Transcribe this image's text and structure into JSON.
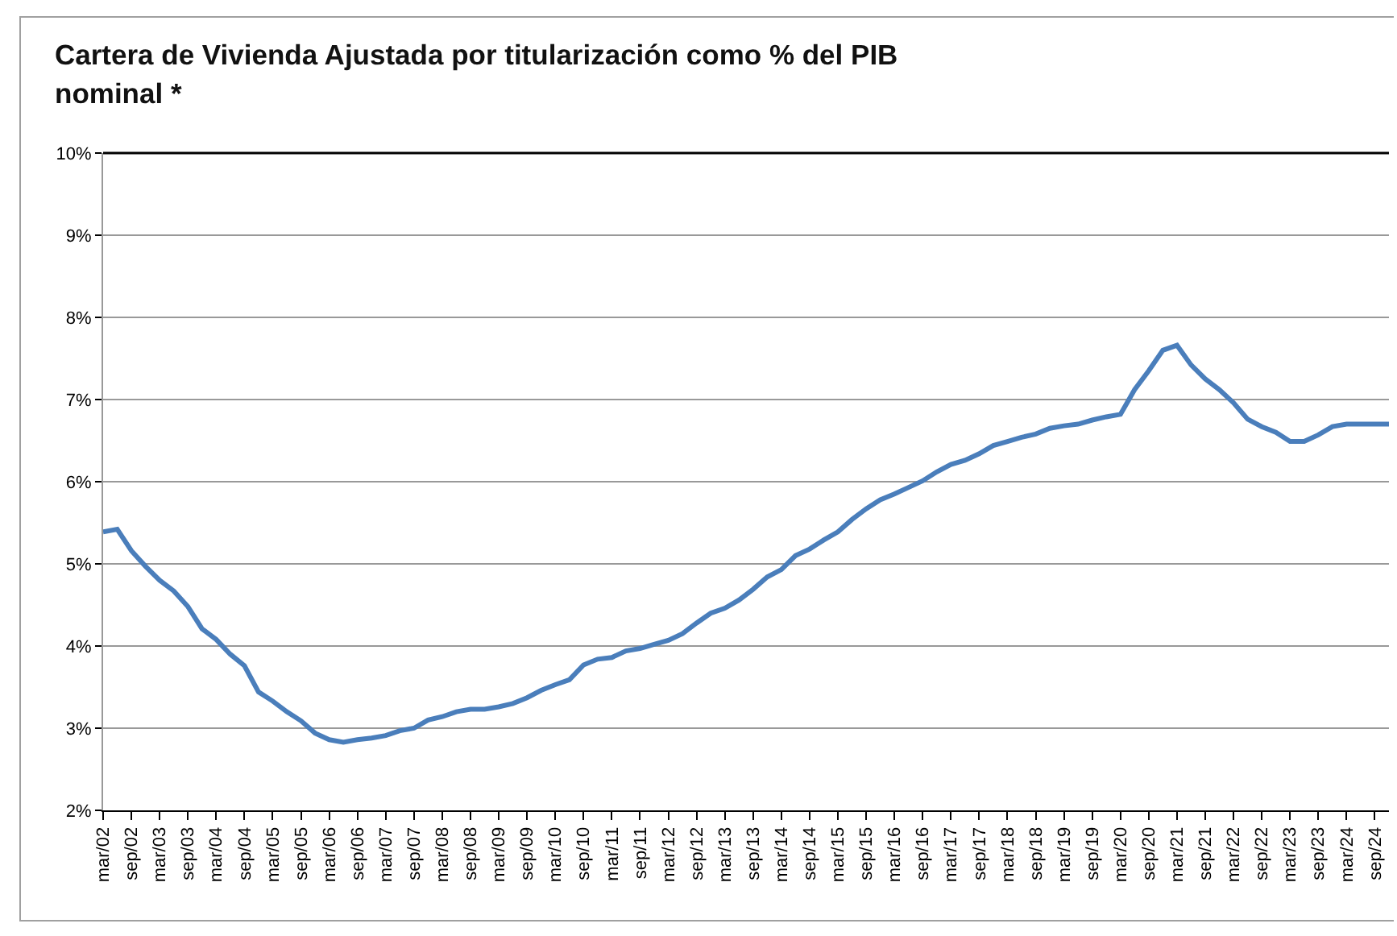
{
  "chart_data": {
    "type": "line",
    "title": "Cartera de Vivienda Ajustada por titularización como % del PIB nominal *",
    "categories": [
      "mar/02",
      null,
      "sep/02",
      null,
      "mar/03",
      null,
      "sep/03",
      null,
      "mar/04",
      null,
      "sep/04",
      null,
      "mar/05",
      null,
      "sep/05",
      null,
      "mar/06",
      null,
      "sep/06",
      null,
      "mar/07",
      null,
      "sep/07",
      null,
      "mar/08",
      null,
      "sep/08",
      null,
      "mar/09",
      null,
      "sep/09",
      null,
      "mar/10",
      null,
      "sep/10",
      null,
      "mar/11",
      null,
      "sep/11",
      null,
      "mar/12",
      null,
      "sep/12",
      null,
      "mar/13",
      null,
      "sep/13",
      null,
      "mar/14",
      null,
      "sep/14",
      null,
      "mar/15",
      null,
      "sep/15",
      null,
      "mar/16",
      null,
      "sep/16",
      null,
      "mar/17",
      null,
      "sep/17",
      null,
      "mar/18",
      null,
      "sep/18",
      null,
      "mar/19",
      null,
      "sep/19",
      null,
      "mar/20",
      null,
      "sep/20",
      null,
      "mar/21",
      null,
      "sep/21",
      null,
      "mar/22",
      null,
      "sep/22",
      null,
      "mar/23",
      null,
      "sep/23",
      null,
      "mar/24",
      null,
      "sep/24",
      null
    ],
    "series": [
      {
        "color": "#4a7ebb",
        "values": [
          5.39,
          5.42,
          5.16,
          4.97,
          4.8,
          4.67,
          4.48,
          4.21,
          4.08,
          3.9,
          3.76,
          3.44,
          3.33,
          3.2,
          3.09,
          2.94,
          2.86,
          2.83,
          2.86,
          2.88,
          2.91,
          2.97,
          3.0,
          3.1,
          3.14,
          3.2,
          3.23,
          3.23,
          3.26,
          3.3,
          3.37,
          3.46,
          3.53,
          3.59,
          3.77,
          3.84,
          3.86,
          3.94,
          3.97,
          4.02,
          4.07,
          4.15,
          4.28,
          4.4,
          4.46,
          4.56,
          4.69,
          4.84,
          4.93,
          5.1,
          5.18,
          5.29,
          5.39,
          5.54,
          5.67,
          5.78,
          5.85,
          5.93,
          6.01,
          6.12,
          6.21,
          6.26,
          6.34,
          6.44,
          6.49,
          6.54,
          6.58,
          6.65,
          6.68,
          6.7,
          6.75,
          6.79,
          6.82,
          7.12,
          7.35,
          7.6,
          7.66,
          7.42,
          7.25,
          7.12,
          6.96,
          6.76,
          6.67,
          6.6,
          6.49,
          6.49,
          6.57,
          6.67,
          6.7,
          6.7,
          6.7,
          6.7
        ]
      }
    ],
    "ylim": [
      2,
      10
    ],
    "yticks": [
      {
        "value": 2,
        "label": "2%"
      },
      {
        "value": 3,
        "label": "3%"
      },
      {
        "value": 4,
        "label": "4%"
      },
      {
        "value": 5,
        "label": "5%"
      },
      {
        "value": 6,
        "label": "6%"
      },
      {
        "value": 7,
        "label": "7%"
      },
      {
        "value": 8,
        "label": "8%"
      },
      {
        "value": 9,
        "label": "9%"
      },
      {
        "value": 10,
        "label": "10%"
      }
    ],
    "grid": "y",
    "marker": "none",
    "line_style": "solid"
  }
}
